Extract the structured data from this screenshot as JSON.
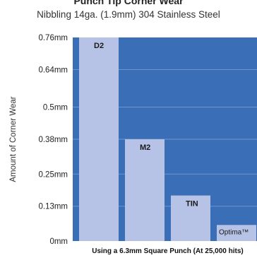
{
  "chart_data": {
    "type": "bar",
    "title": "Punch Tip Corner Wear",
    "subtitle": "Nibbling 14ga. (1.9mm) 304 Stainless Steel",
    "ylabel": "Amount of Corner Wear",
    "xlabel": "Using a 6.3mm Square Punch (At 25,000 hits)",
    "categories": [
      "D2",
      "M2",
      "TIN",
      "Optima™"
    ],
    "values": [
      0.76,
      0.38,
      0.17,
      0.06
    ],
    "unit": "mm",
    "y_ticks": [
      "0mm",
      "0.13mm",
      "0.25mm",
      "0.38mm",
      "0.5mm",
      "0.64mm",
      "0.76mm"
    ],
    "y_tick_values": [
      0,
      0.13,
      0.25,
      0.38,
      0.5,
      0.64,
      0.76
    ],
    "ylim": [
      0,
      0.76
    ],
    "grid": true,
    "legend": "none",
    "colors": {
      "plot_bg": "#3a6fb8",
      "bar": "#b6c3e6",
      "grid": "#6f95cc"
    }
  }
}
